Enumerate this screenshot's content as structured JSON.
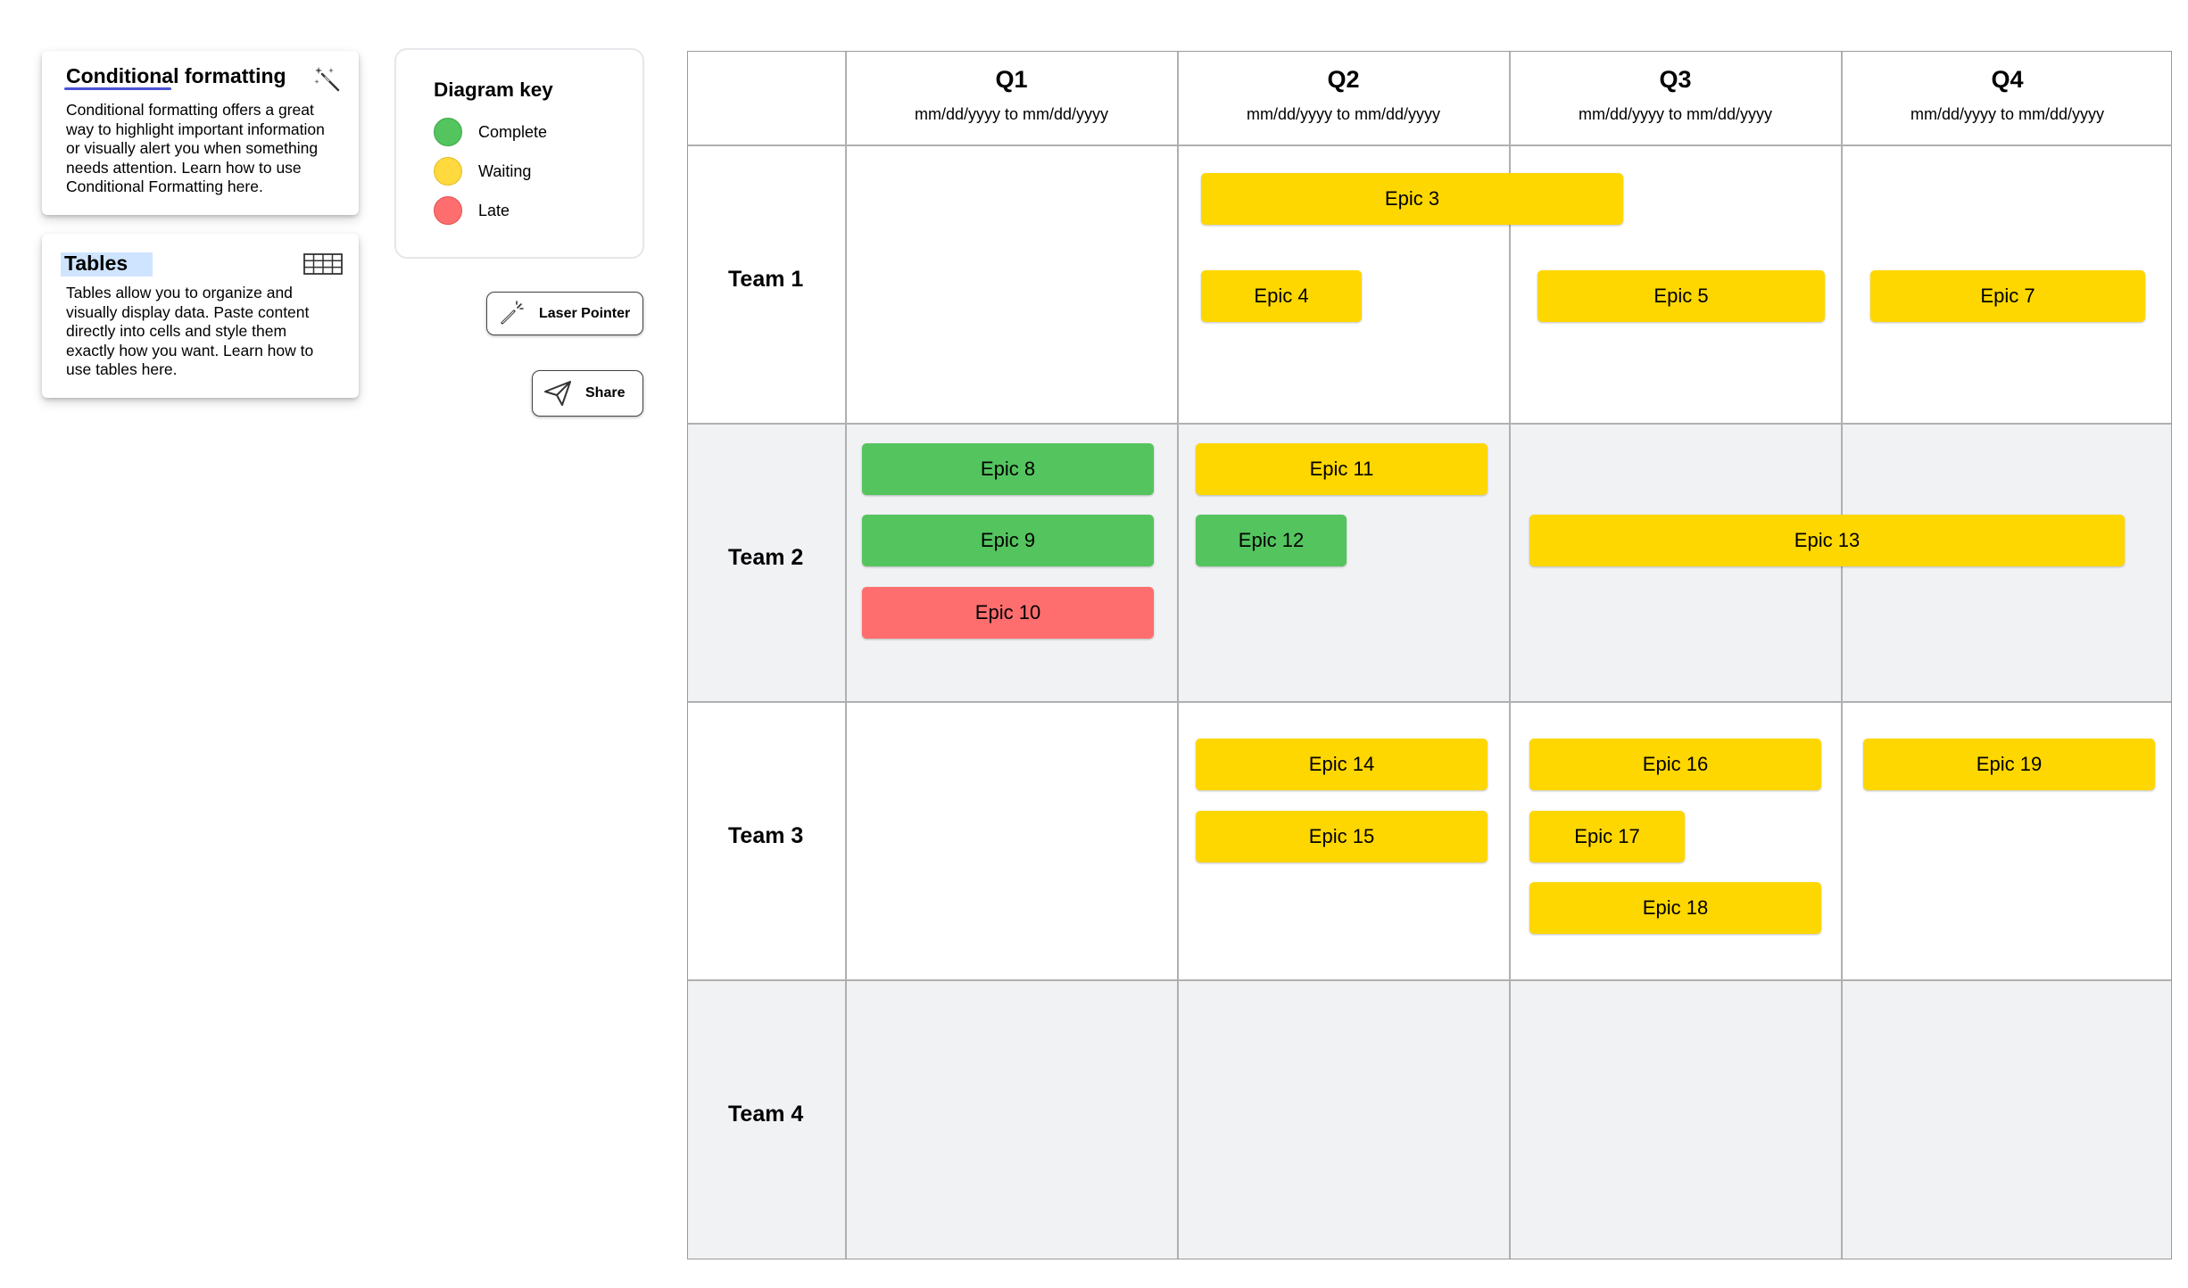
{
  "colors": {
    "complete": "#54c45e",
    "waiting": "#ffd700",
    "late": "#ff6e6e",
    "band": "#f1f2f4",
    "highlight": "#cfe4ff",
    "underline": "#4a54d6"
  },
  "cards": {
    "conditional": {
      "title_part1": "Conditional",
      "title_part2": " formatting",
      "body": "Conditional formatting offers a great way to highlight important information or visually alert you when something needs attention. Learn how to use Conditional Formatting here.",
      "icon": "magic-wand-icon"
    },
    "tables": {
      "title": "Tables",
      "body": "Tables allow you to organize and visually display data. Paste content directly into cells and style them exactly how you want. Learn how to use tables here.",
      "icon": "table-icon"
    }
  },
  "key": {
    "title": "Diagram key",
    "items": [
      {
        "label": "Complete",
        "status": "complete"
      },
      {
        "label": "Waiting",
        "status": "waiting"
      },
      {
        "label": "Late",
        "status": "late"
      }
    ]
  },
  "buttons": {
    "laser": {
      "label": "Laser Pointer",
      "icon": "laser-pointer-icon"
    },
    "share": {
      "label": "Share",
      "icon": "paper-plane-icon"
    }
  },
  "roadmap": {
    "quarters": [
      {
        "title": "Q1",
        "dates": "mm/dd/yyyy to mm/dd/yyyy"
      },
      {
        "title": "Q2",
        "dates": "mm/dd/yyyy to mm/dd/yyyy"
      },
      {
        "title": "Q3",
        "dates": "mm/dd/yyyy to mm/dd/yyyy"
      },
      {
        "title": "Q4",
        "dates": "mm/dd/yyyy to mm/dd/yyyy"
      }
    ],
    "teams": [
      {
        "name": "Team 1"
      },
      {
        "name": "Team 2"
      },
      {
        "name": "Team 3"
      },
      {
        "name": "Team 4"
      }
    ],
    "epics": [
      {
        "label": "Epic 3",
        "status": "waiting"
      },
      {
        "label": "Epic 4",
        "status": "waiting"
      },
      {
        "label": "Epic 5",
        "status": "waiting"
      },
      {
        "label": "Epic 7",
        "status": "waiting"
      },
      {
        "label": "Epic 8",
        "status": "complete"
      },
      {
        "label": "Epic 9",
        "status": "complete"
      },
      {
        "label": "Epic 10",
        "status": "late"
      },
      {
        "label": "Epic 11",
        "status": "waiting"
      },
      {
        "label": "Epic 12",
        "status": "complete"
      },
      {
        "label": "Epic 13",
        "status": "waiting"
      },
      {
        "label": "Epic 14",
        "status": "waiting"
      },
      {
        "label": "Epic 15",
        "status": "waiting"
      },
      {
        "label": "Epic 16",
        "status": "waiting"
      },
      {
        "label": "Epic 17",
        "status": "waiting"
      },
      {
        "label": "Epic 18",
        "status": "waiting"
      },
      {
        "label": "Epic 19",
        "status": "waiting"
      }
    ]
  }
}
